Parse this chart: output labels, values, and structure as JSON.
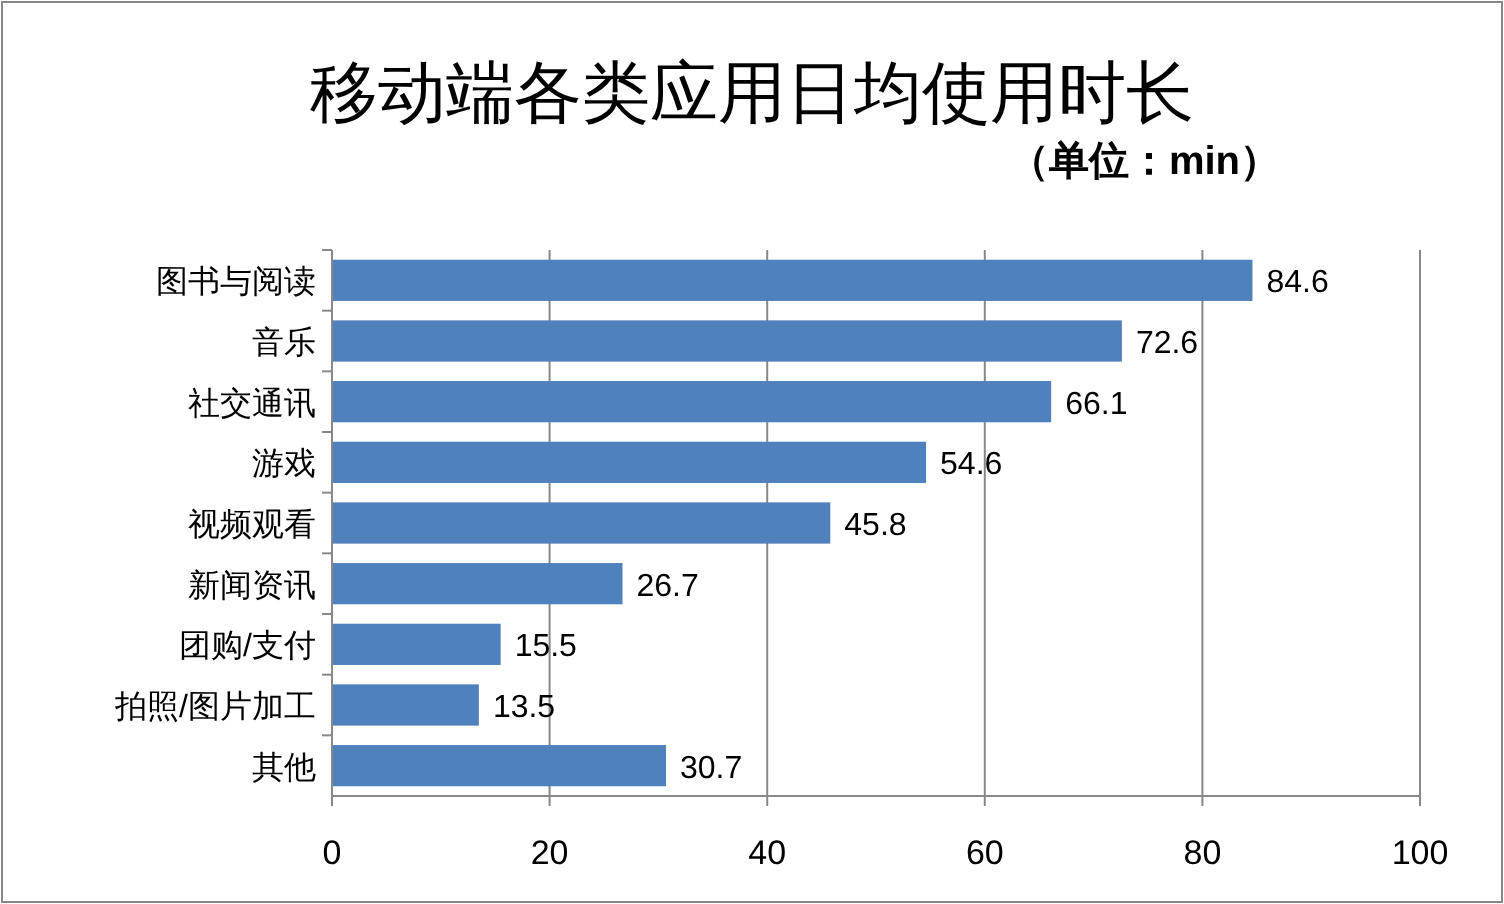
{
  "chart_data": {
    "type": "bar",
    "orientation": "horizontal",
    "title": "移动端各类应用日均使用时长",
    "subtitle": "（单位：min）",
    "categories": [
      "图书与阅读",
      "音乐",
      "社交通讯",
      "游戏",
      "视频观看",
      "新闻资讯",
      "团购/支付",
      "拍照/图片加工",
      "其他"
    ],
    "values": [
      84.6,
      72.6,
      66.1,
      54.6,
      45.8,
      26.7,
      15.5,
      13.5,
      30.7
    ],
    "color": "#4f81bd",
    "xlim": [
      0,
      100
    ],
    "xticks": [
      0,
      20,
      40,
      60,
      80,
      100
    ],
    "grid": "x",
    "data_labels": true
  }
}
